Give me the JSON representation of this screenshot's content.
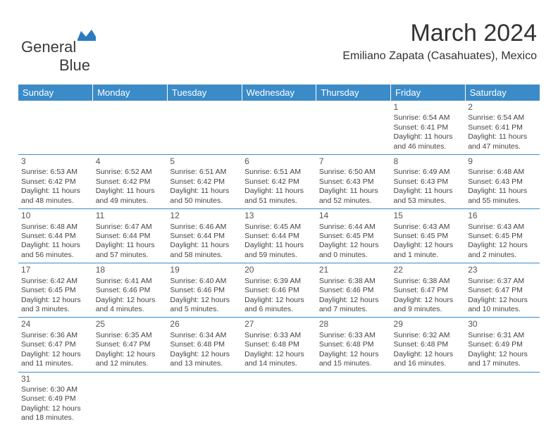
{
  "logo": {
    "name_a": "General",
    "name_b": "Blue"
  },
  "title": "March 2024",
  "location": "Emiliano Zapata (Casahuates), Mexico",
  "colors": {
    "header_bg": "#3b8bc8",
    "header_fg": "#ffffff",
    "cell_border": "#3b8bc8",
    "text": "#444444",
    "title_color": "#333333",
    "logo_blue": "#2b7bbf"
  },
  "weekdays": [
    "Sunday",
    "Monday",
    "Tuesday",
    "Wednesday",
    "Thursday",
    "Friday",
    "Saturday"
  ],
  "weeks": [
    [
      null,
      null,
      null,
      null,
      null,
      {
        "n": "1",
        "sr": "Sunrise: 6:54 AM",
        "ss": "Sunset: 6:41 PM",
        "dl1": "Daylight: 11 hours",
        "dl2": "and 46 minutes."
      },
      {
        "n": "2",
        "sr": "Sunrise: 6:54 AM",
        "ss": "Sunset: 6:41 PM",
        "dl1": "Daylight: 11 hours",
        "dl2": "and 47 minutes."
      }
    ],
    [
      {
        "n": "3",
        "sr": "Sunrise: 6:53 AM",
        "ss": "Sunset: 6:42 PM",
        "dl1": "Daylight: 11 hours",
        "dl2": "and 48 minutes."
      },
      {
        "n": "4",
        "sr": "Sunrise: 6:52 AM",
        "ss": "Sunset: 6:42 PM",
        "dl1": "Daylight: 11 hours",
        "dl2": "and 49 minutes."
      },
      {
        "n": "5",
        "sr": "Sunrise: 6:51 AM",
        "ss": "Sunset: 6:42 PM",
        "dl1": "Daylight: 11 hours",
        "dl2": "and 50 minutes."
      },
      {
        "n": "6",
        "sr": "Sunrise: 6:51 AM",
        "ss": "Sunset: 6:42 PM",
        "dl1": "Daylight: 11 hours",
        "dl2": "and 51 minutes."
      },
      {
        "n": "7",
        "sr": "Sunrise: 6:50 AM",
        "ss": "Sunset: 6:43 PM",
        "dl1": "Daylight: 11 hours",
        "dl2": "and 52 minutes."
      },
      {
        "n": "8",
        "sr": "Sunrise: 6:49 AM",
        "ss": "Sunset: 6:43 PM",
        "dl1": "Daylight: 11 hours",
        "dl2": "and 53 minutes."
      },
      {
        "n": "9",
        "sr": "Sunrise: 6:48 AM",
        "ss": "Sunset: 6:43 PM",
        "dl1": "Daylight: 11 hours",
        "dl2": "and 55 minutes."
      }
    ],
    [
      {
        "n": "10",
        "sr": "Sunrise: 6:48 AM",
        "ss": "Sunset: 6:44 PM",
        "dl1": "Daylight: 11 hours",
        "dl2": "and 56 minutes."
      },
      {
        "n": "11",
        "sr": "Sunrise: 6:47 AM",
        "ss": "Sunset: 6:44 PM",
        "dl1": "Daylight: 11 hours",
        "dl2": "and 57 minutes."
      },
      {
        "n": "12",
        "sr": "Sunrise: 6:46 AM",
        "ss": "Sunset: 6:44 PM",
        "dl1": "Daylight: 11 hours",
        "dl2": "and 58 minutes."
      },
      {
        "n": "13",
        "sr": "Sunrise: 6:45 AM",
        "ss": "Sunset: 6:44 PM",
        "dl1": "Daylight: 11 hours",
        "dl2": "and 59 minutes."
      },
      {
        "n": "14",
        "sr": "Sunrise: 6:44 AM",
        "ss": "Sunset: 6:45 PM",
        "dl1": "Daylight: 12 hours",
        "dl2": "and 0 minutes."
      },
      {
        "n": "15",
        "sr": "Sunrise: 6:43 AM",
        "ss": "Sunset: 6:45 PM",
        "dl1": "Daylight: 12 hours",
        "dl2": "and 1 minute."
      },
      {
        "n": "16",
        "sr": "Sunrise: 6:43 AM",
        "ss": "Sunset: 6:45 PM",
        "dl1": "Daylight: 12 hours",
        "dl2": "and 2 minutes."
      }
    ],
    [
      {
        "n": "17",
        "sr": "Sunrise: 6:42 AM",
        "ss": "Sunset: 6:45 PM",
        "dl1": "Daylight: 12 hours",
        "dl2": "and 3 minutes."
      },
      {
        "n": "18",
        "sr": "Sunrise: 6:41 AM",
        "ss": "Sunset: 6:46 PM",
        "dl1": "Daylight: 12 hours",
        "dl2": "and 4 minutes."
      },
      {
        "n": "19",
        "sr": "Sunrise: 6:40 AM",
        "ss": "Sunset: 6:46 PM",
        "dl1": "Daylight: 12 hours",
        "dl2": "and 5 minutes."
      },
      {
        "n": "20",
        "sr": "Sunrise: 6:39 AM",
        "ss": "Sunset: 6:46 PM",
        "dl1": "Daylight: 12 hours",
        "dl2": "and 6 minutes."
      },
      {
        "n": "21",
        "sr": "Sunrise: 6:38 AM",
        "ss": "Sunset: 6:46 PM",
        "dl1": "Daylight: 12 hours",
        "dl2": "and 7 minutes."
      },
      {
        "n": "22",
        "sr": "Sunrise: 6:38 AM",
        "ss": "Sunset: 6:47 PM",
        "dl1": "Daylight: 12 hours",
        "dl2": "and 9 minutes."
      },
      {
        "n": "23",
        "sr": "Sunrise: 6:37 AM",
        "ss": "Sunset: 6:47 PM",
        "dl1": "Daylight: 12 hours",
        "dl2": "and 10 minutes."
      }
    ],
    [
      {
        "n": "24",
        "sr": "Sunrise: 6:36 AM",
        "ss": "Sunset: 6:47 PM",
        "dl1": "Daylight: 12 hours",
        "dl2": "and 11 minutes."
      },
      {
        "n": "25",
        "sr": "Sunrise: 6:35 AM",
        "ss": "Sunset: 6:47 PM",
        "dl1": "Daylight: 12 hours",
        "dl2": "and 12 minutes."
      },
      {
        "n": "26",
        "sr": "Sunrise: 6:34 AM",
        "ss": "Sunset: 6:48 PM",
        "dl1": "Daylight: 12 hours",
        "dl2": "and 13 minutes."
      },
      {
        "n": "27",
        "sr": "Sunrise: 6:33 AM",
        "ss": "Sunset: 6:48 PM",
        "dl1": "Daylight: 12 hours",
        "dl2": "and 14 minutes."
      },
      {
        "n": "28",
        "sr": "Sunrise: 6:33 AM",
        "ss": "Sunset: 6:48 PM",
        "dl1": "Daylight: 12 hours",
        "dl2": "and 15 minutes."
      },
      {
        "n": "29",
        "sr": "Sunrise: 6:32 AM",
        "ss": "Sunset: 6:48 PM",
        "dl1": "Daylight: 12 hours",
        "dl2": "and 16 minutes."
      },
      {
        "n": "30",
        "sr": "Sunrise: 6:31 AM",
        "ss": "Sunset: 6:49 PM",
        "dl1": "Daylight: 12 hours",
        "dl2": "and 17 minutes."
      }
    ],
    [
      {
        "n": "31",
        "sr": "Sunrise: 6:30 AM",
        "ss": "Sunset: 6:49 PM",
        "dl1": "Daylight: 12 hours",
        "dl2": "and 18 minutes."
      },
      null,
      null,
      null,
      null,
      null,
      null
    ]
  ]
}
